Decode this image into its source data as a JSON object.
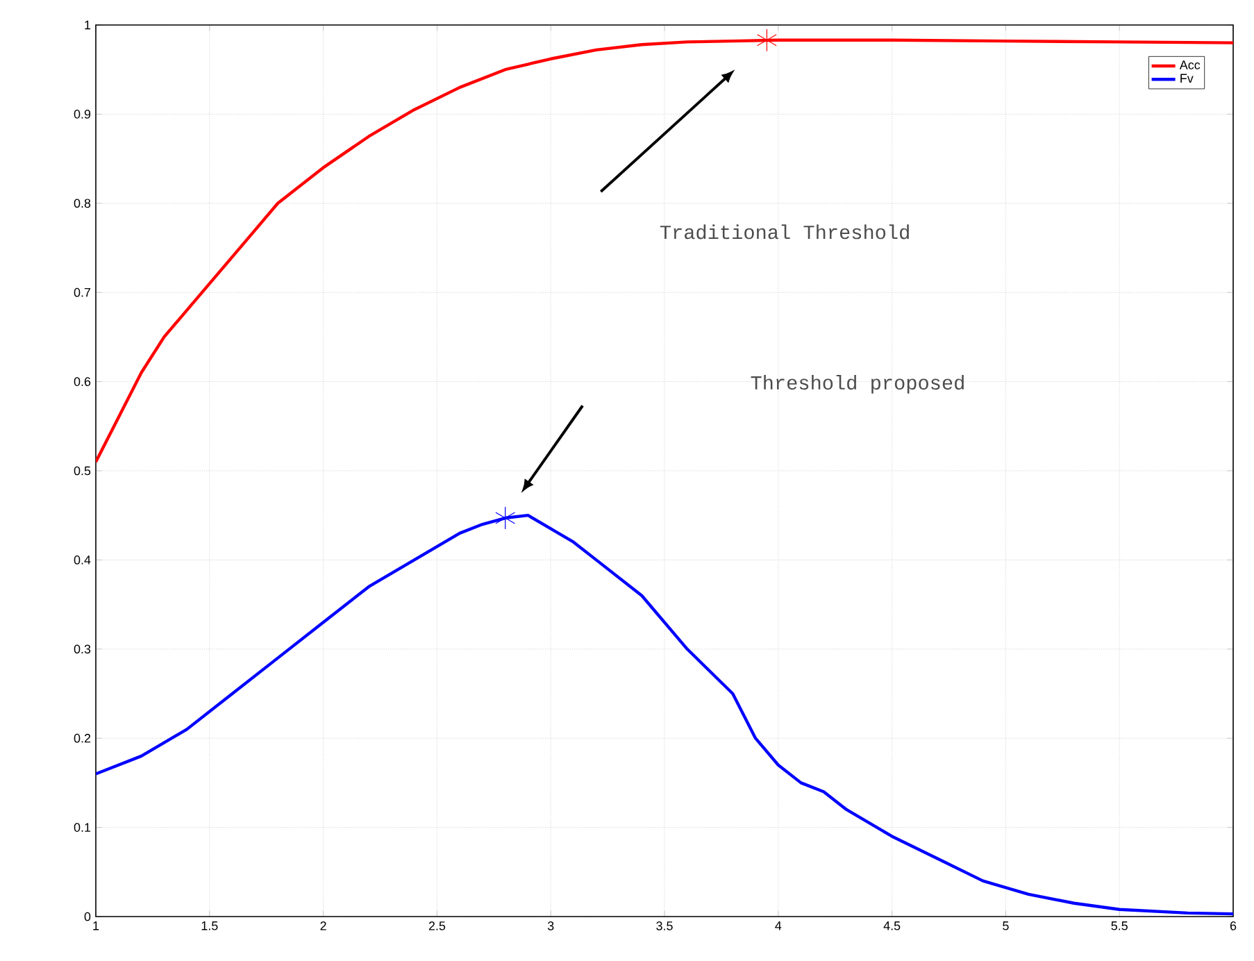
{
  "chart_data": {
    "type": "line",
    "series": [
      {
        "name": "Acc",
        "color": "#ff0000",
        "x": [
          1.0,
          1.1,
          1.2,
          1.3,
          1.4,
          1.5,
          1.6,
          1.7,
          1.8,
          1.9,
          2.0,
          2.2,
          2.4,
          2.6,
          2.8,
          3.0,
          3.2,
          3.4,
          3.6,
          3.8,
          4.0,
          4.5,
          5.0,
          5.5,
          6.0
        ],
        "values": [
          0.51,
          0.56,
          0.61,
          0.65,
          0.68,
          0.71,
          0.74,
          0.77,
          0.8,
          0.82,
          0.84,
          0.875,
          0.905,
          0.93,
          0.95,
          0.962,
          0.972,
          0.978,
          0.981,
          0.982,
          0.983,
          0.983,
          0.982,
          0.981,
          0.98
        ]
      },
      {
        "name": "Fv",
        "color": "#0000ff",
        "x": [
          1.0,
          1.2,
          1.4,
          1.6,
          1.8,
          2.0,
          2.2,
          2.4,
          2.6,
          2.7,
          2.8,
          2.9,
          3.0,
          3.1,
          3.2,
          3.4,
          3.6,
          3.8,
          3.9,
          4.0,
          4.1,
          4.2,
          4.3,
          4.5,
          4.7,
          4.9,
          5.1,
          5.3,
          5.5,
          5.8,
          6.0
        ],
        "values": [
          0.16,
          0.18,
          0.21,
          0.25,
          0.29,
          0.33,
          0.37,
          0.4,
          0.43,
          0.44,
          0.447,
          0.45,
          0.435,
          0.42,
          0.4,
          0.36,
          0.3,
          0.25,
          0.2,
          0.17,
          0.15,
          0.14,
          0.12,
          0.09,
          0.065,
          0.04,
          0.025,
          0.015,
          0.008,
          0.004,
          0.003
        ]
      },
      {
        "type": "scatter",
        "color": "#ff0000",
        "marker": "cross",
        "x": [
          3.95
        ],
        "values": [
          0.983
        ]
      },
      {
        "type": "scatter",
        "color": "#0000ff",
        "marker": "cross",
        "x": [
          2.8
        ],
        "values": [
          0.447
        ]
      }
    ],
    "xlim": [
      1,
      6
    ],
    "ylim": [
      0,
      1
    ],
    "xticks": [
      1,
      1.5,
      2,
      2.5,
      3,
      3.5,
      4,
      4.5,
      5,
      5.5,
      6
    ],
    "yticks": [
      0,
      0.1,
      0.2,
      0.3,
      0.4,
      0.5,
      0.6,
      0.7,
      0.8,
      0.9,
      1
    ],
    "grid": true,
    "legend": "top right",
    "marker": "none",
    "line_style": "solid",
    "annotations": [
      "Traditional Threshold",
      "Threshold proposed"
    ]
  }
}
